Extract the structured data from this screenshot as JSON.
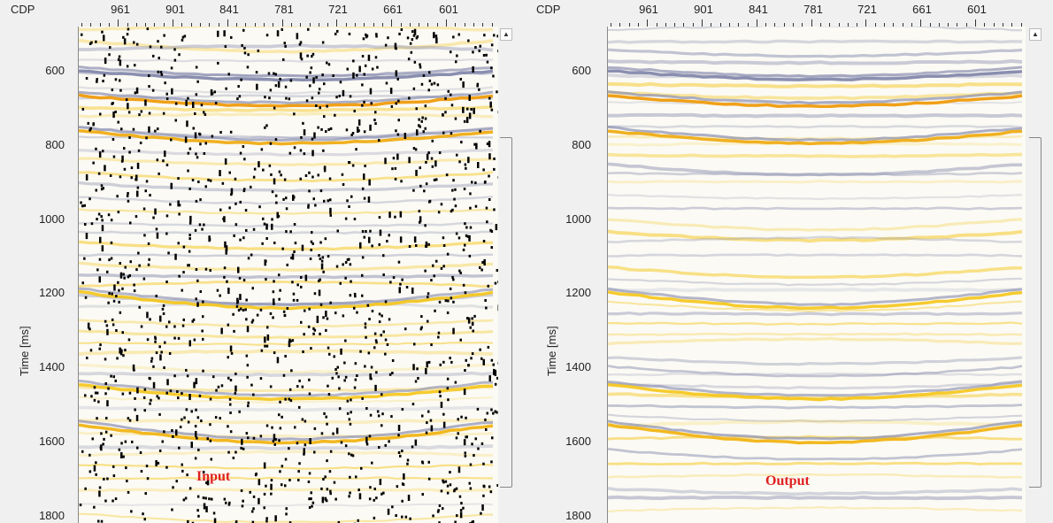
{
  "colors": {
    "caption": "#e02020",
    "positive": "#f5c518",
    "negative": "#8a8fb0",
    "background": "#fbfaf4"
  },
  "panels": [
    {
      "id": "input",
      "x_title": "CDP",
      "y_title": "Time [ms]",
      "x_ticks": [
        "961",
        "901",
        "841",
        "781",
        "721",
        "661",
        "601"
      ],
      "y_ticks": [
        "600",
        "800",
        "1000",
        "1200",
        "1400",
        "1600",
        "1800"
      ],
      "caption": "Input",
      "scroll_up_icon": "triangle-up-icon",
      "noisy": true
    },
    {
      "id": "output",
      "x_title": "CDP",
      "y_title": "Time [ms]",
      "x_ticks": [
        "961",
        "901",
        "841",
        "781",
        "721",
        "661",
        "601"
      ],
      "y_ticks": [
        "600",
        "800",
        "1000",
        "1200",
        "1400",
        "1600",
        "1800"
      ],
      "caption": "Output",
      "scroll_up_icon": "triangle-up-icon",
      "noisy": false
    }
  ]
}
